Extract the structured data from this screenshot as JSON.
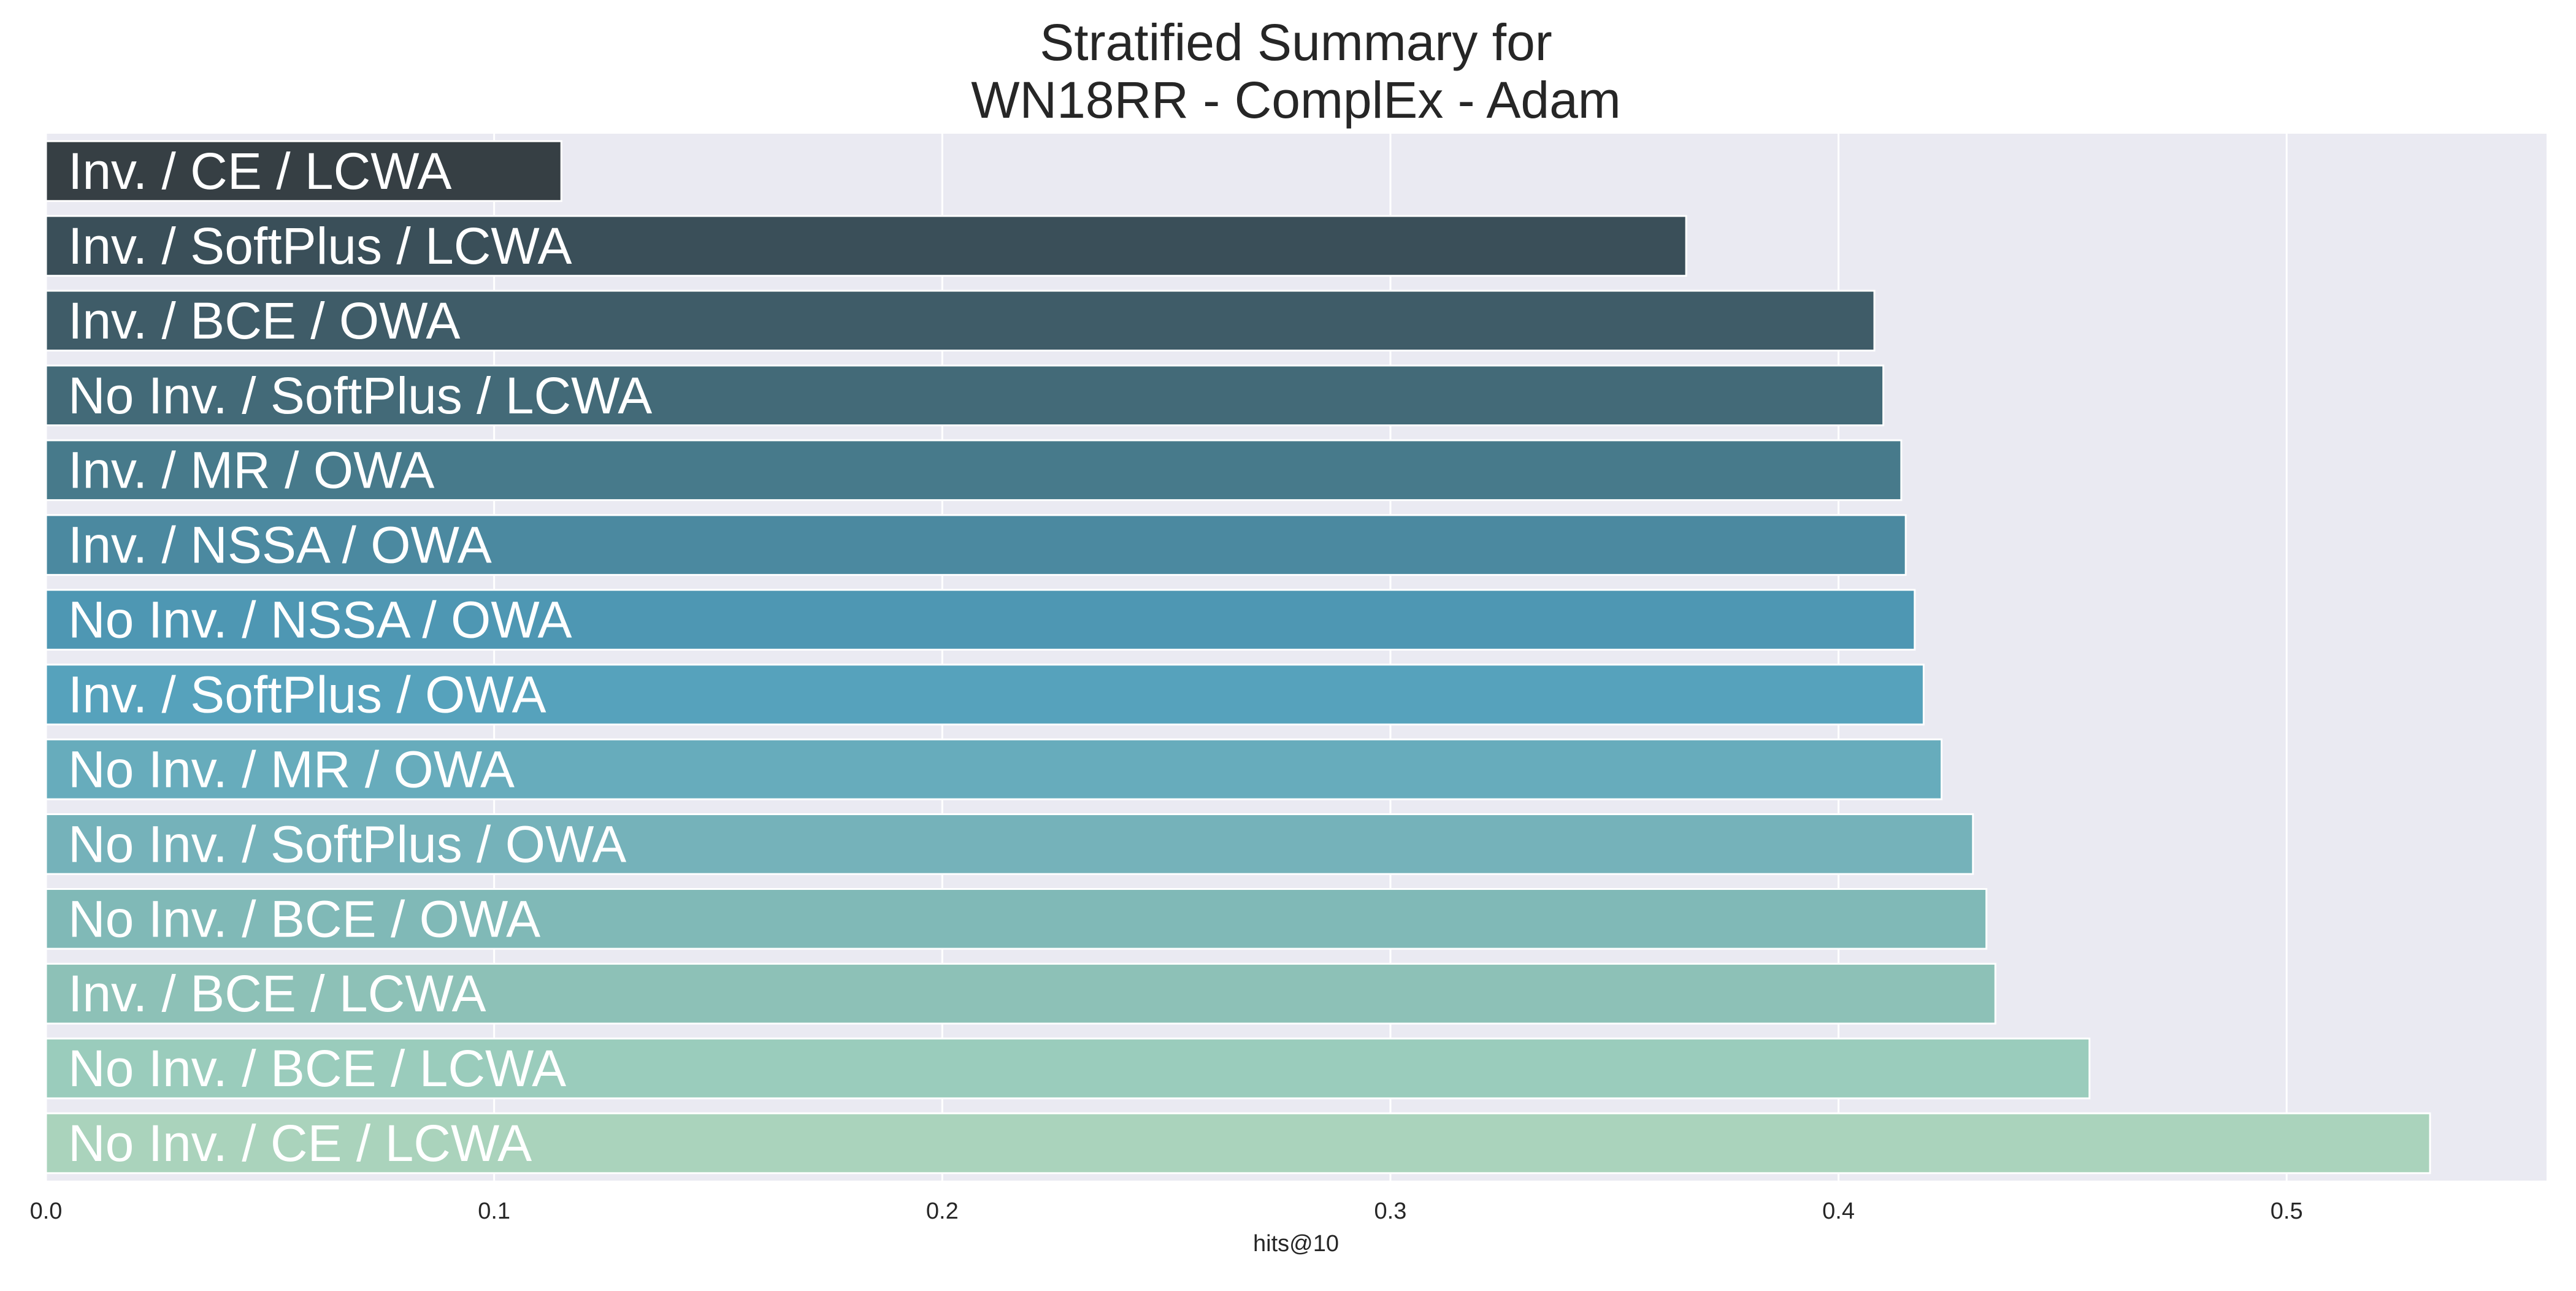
{
  "chart_data": {
    "type": "bar",
    "orientation": "horizontal",
    "title_lines": [
      "Stratified Summary for",
      "WN18RR - ComplEx - Adam"
    ],
    "xlabel": "hits@10",
    "ylabel": "",
    "xlim": [
      0.0,
      0.558
    ],
    "xticks": [
      0.0,
      0.1,
      0.2,
      0.3,
      0.4,
      0.5
    ],
    "xtick_labels": [
      "0.0",
      "0.1",
      "0.2",
      "0.3",
      "0.4",
      "0.5"
    ],
    "grid": true,
    "legend": "none",
    "background_color": "#eaeaf2",
    "grid_color": "#ffffff",
    "bar_label_color": "#ffffff",
    "categories": [
      "Inv. / CE / LCWA",
      "Inv. / SoftPlus / LCWA",
      "Inv. / BCE / OWA",
      "No Inv. / SoftPlus / LCWA",
      "Inv. / MR / OWA",
      "Inv. / NSSA / OWA",
      "No Inv. / NSSA / OWA",
      "Inv. / SoftPlus / OWA",
      "No Inv. / MR / OWA",
      "No Inv. / SoftPlus / OWA",
      "No Inv. / BCE / OWA",
      "Inv. / BCE / LCWA",
      "No Inv. / BCE / LCWA",
      "No Inv. / CE / LCWA"
    ],
    "values": [
      0.115,
      0.366,
      0.408,
      0.41,
      0.414,
      0.415,
      0.417,
      0.419,
      0.423,
      0.43,
      0.433,
      0.435,
      0.456,
      0.532
    ],
    "colors": [
      "#363f44",
      "#3a4f59",
      "#3f5c68",
      "#436a78",
      "#477a8b",
      "#4b89a0",
      "#4e97b3",
      "#56a2bc",
      "#67acbc",
      "#75b2ba",
      "#80b9b7",
      "#8dc1b7",
      "#9accbc",
      "#aad3bc"
    ]
  }
}
